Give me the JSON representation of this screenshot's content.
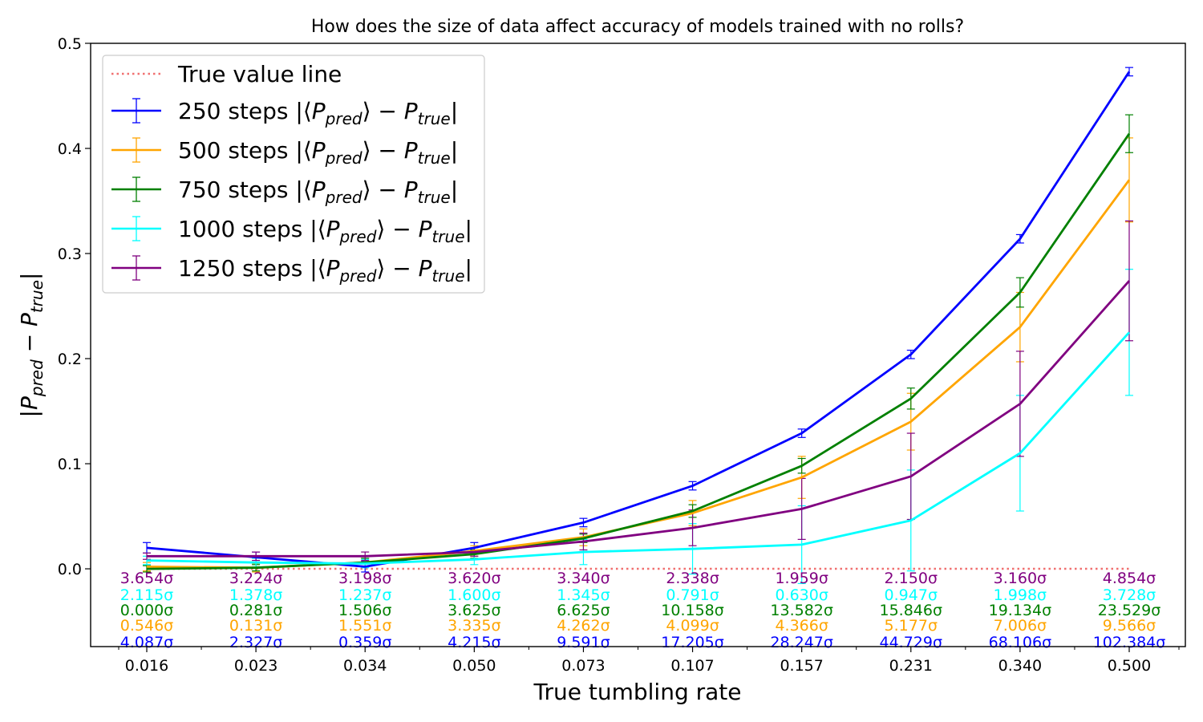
{
  "chart_data": {
    "type": "line",
    "title": "How does the size of data affect accuracy of models trained with no rolls?",
    "xlabel": "True tumbling rate",
    "ylabel": "|P_pred − P_true|",
    "categories": [
      "0.016",
      "0.023",
      "0.034",
      "0.050",
      "0.073",
      "0.107",
      "0.157",
      "0.231",
      "0.340",
      "0.500"
    ],
    "ylim": [
      -0.074,
      0.5
    ],
    "yticks": [
      "0.0",
      "0.1",
      "0.2",
      "0.3",
      "0.4",
      "0.5"
    ],
    "ytick_values": [
      0.0,
      0.1,
      0.2,
      0.3,
      0.4,
      0.5
    ],
    "legend_position": "upper-left",
    "grid": false,
    "reference_line": {
      "name": "True value line",
      "y": 0.0,
      "color": "#f07070"
    },
    "series": [
      {
        "name": "250 steps |⟨P_pred⟩ − P_true|",
        "color": "#0000ff",
        "values": [
          0.02,
          0.011,
          0.002,
          0.02,
          0.044,
          0.079,
          0.129,
          0.204,
          0.314,
          0.473
        ],
        "errors": [
          0.005,
          0.005,
          0.005,
          0.005,
          0.004,
          0.004,
          0.004,
          0.004,
          0.004,
          0.004
        ],
        "sigma_labels": [
          "4.087σ",
          "2.327σ",
          "0.359σ",
          "4.215σ",
          "9.591σ",
          "17.205σ",
          "28.247σ",
          "44.729σ",
          "68.106σ",
          "102.384σ"
        ]
      },
      {
        "name": "500 steps |⟨P_pred⟩ − P_true|",
        "color": "#ffa500",
        "values": [
          0.002,
          0.001,
          0.006,
          0.017,
          0.03,
          0.053,
          0.087,
          0.14,
          0.23,
          0.37
        ],
        "errors": [
          0.004,
          0.004,
          0.004,
          0.005,
          0.008,
          0.012,
          0.02,
          0.027,
          0.033,
          0.04
        ],
        "sigma_labels": [
          "0.546σ",
          "0.131σ",
          "1.551σ",
          "3.335σ",
          "4.262σ",
          "4.099σ",
          "4.366σ",
          "5.177σ",
          "7.006σ",
          "9.566σ"
        ]
      },
      {
        "name": "750 steps |⟨P_pred⟩ − P_true|",
        "color": "#008000",
        "values": [
          0.0,
          0.001,
          0.006,
          0.014,
          0.029,
          0.055,
          0.098,
          0.162,
          0.263,
          0.414
        ],
        "errors": [
          0.003,
          0.003,
          0.004,
          0.004,
          0.004,
          0.006,
          0.007,
          0.01,
          0.014,
          0.018
        ],
        "sigma_labels": [
          "0.000σ",
          "0.281σ",
          "1.506σ",
          "3.625σ",
          "6.625σ",
          "10.158σ",
          "13.582σ",
          "15.846σ",
          "19.134σ",
          "23.529σ"
        ]
      },
      {
        "name": "1000 steps |⟨P_pred⟩ − P_true|",
        "color": "#00ffff",
        "values": [
          0.008,
          0.006,
          0.005,
          0.009,
          0.016,
          0.019,
          0.023,
          0.046,
          0.11,
          0.225
        ],
        "errors": [
          0.004,
          0.004,
          0.004,
          0.005,
          0.012,
          0.024,
          0.037,
          0.048,
          0.055,
          0.06
        ],
        "sigma_labels": [
          "2.115σ",
          "1.378σ",
          "1.237σ",
          "1.600σ",
          "1.345σ",
          "0.791σ",
          "0.630σ",
          "0.947σ",
          "1.998σ",
          "3.728σ"
        ]
      },
      {
        "name": "1250 steps |⟨P_pred⟩ − P_true|",
        "color": "#800080",
        "values": [
          0.012,
          0.012,
          0.012,
          0.016,
          0.026,
          0.039,
          0.057,
          0.088,
          0.157,
          0.274
        ],
        "errors": [
          0.003,
          0.004,
          0.004,
          0.004,
          0.008,
          0.017,
          0.029,
          0.041,
          0.05,
          0.057
        ],
        "sigma_labels": [
          "3.654σ",
          "3.224σ",
          "3.198σ",
          "3.620σ",
          "3.340σ",
          "2.338σ",
          "1.959σ",
          "2.150σ",
          "3.160σ",
          "4.854σ"
        ]
      }
    ],
    "sigma_row_order": [
      4,
      3,
      2,
      1,
      0
    ]
  }
}
